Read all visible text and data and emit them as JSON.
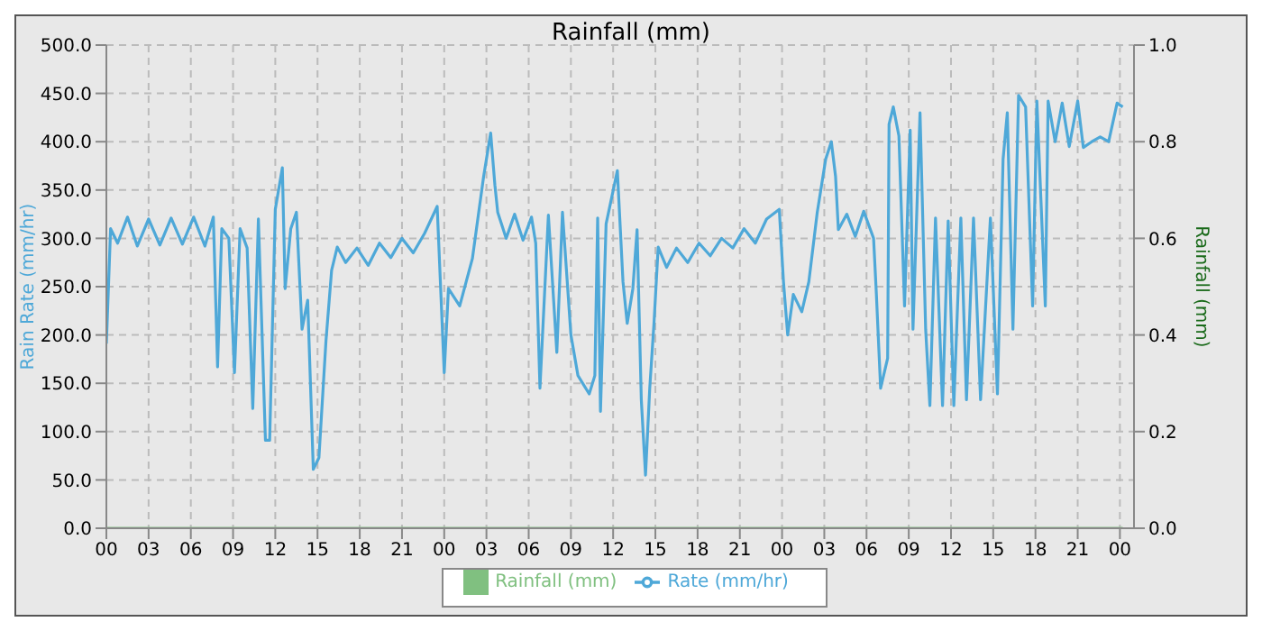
{
  "chart_data": {
    "type": "line",
    "title": "Rainfall (mm)",
    "ylabel": "Rain Rate (mm/hr)",
    "y2label": "Rainfall (mm)",
    "xlim": [
      0,
      73
    ],
    "xticks": [
      {
        "value": 0,
        "label": "00"
      },
      {
        "value": 3,
        "label": "03"
      },
      {
        "value": 6,
        "label": "06"
      },
      {
        "value": 9,
        "label": "09"
      },
      {
        "value": 12,
        "label": "12"
      },
      {
        "value": 15,
        "label": "15"
      },
      {
        "value": 18,
        "label": "18"
      },
      {
        "value": 21,
        "label": "21"
      },
      {
        "value": 24,
        "label": "00"
      },
      {
        "value": 27,
        "label": "03"
      },
      {
        "value": 30,
        "label": "06"
      },
      {
        "value": 33,
        "label": "09"
      },
      {
        "value": 36,
        "label": "12"
      },
      {
        "value": 39,
        "label": "15"
      },
      {
        "value": 42,
        "label": "18"
      },
      {
        "value": 45,
        "label": "21"
      },
      {
        "value": 48,
        "label": "00"
      },
      {
        "value": 51,
        "label": "03"
      },
      {
        "value": 54,
        "label": "06"
      },
      {
        "value": 57,
        "label": "09"
      },
      {
        "value": 60,
        "label": "12"
      },
      {
        "value": 63,
        "label": "15"
      },
      {
        "value": 66,
        "label": "18"
      },
      {
        "value": 69,
        "label": "21"
      },
      {
        "value": 72,
        "label": "00"
      }
    ],
    "ylim": [
      0,
      500
    ],
    "yticks": [
      {
        "value": 0,
        "label": "0.0"
      },
      {
        "value": 50,
        "label": "50.0"
      },
      {
        "value": 100,
        "label": "100.0"
      },
      {
        "value": 150,
        "label": "150.0"
      },
      {
        "value": 200,
        "label": "200.0"
      },
      {
        "value": 250,
        "label": "250.0"
      },
      {
        "value": 300,
        "label": "300.0"
      },
      {
        "value": 350,
        "label": "350.0"
      },
      {
        "value": 400,
        "label": "400.0"
      },
      {
        "value": 450,
        "label": "450.0"
      },
      {
        "value": 500,
        "label": "500.0"
      }
    ],
    "y2lim": [
      0,
      1
    ],
    "y2ticks": [
      {
        "value": 0,
        "label": "0.0"
      },
      0.2,
      0.4,
      0.6,
      0.8,
      {
        "value": 1,
        "label": "1.0"
      }
    ],
    "grid": true,
    "legend": "bottom",
    "marker": "none",
    "line_style": "solid",
    "series": [
      {
        "name": "Rate (mm/hr)",
        "color": "#4ea8d8",
        "x": [
          0,
          0.3,
          0.8,
          1.5,
          2.2,
          3,
          3.8,
          4.6,
          5.4,
          6.2,
          7,
          7.6,
          7.9,
          8.2,
          8.7,
          9.1,
          9.5,
          10,
          10.4,
          10.8,
          11.3,
          11.6,
          12,
          12.5,
          12.7,
          13.1,
          13.5,
          13.9,
          14.3,
          14.7,
          15.1,
          15.6,
          16,
          16.4,
          17,
          17.8,
          18.6,
          19.4,
          20.2,
          21,
          21.8,
          22.6,
          23.5,
          24,
          24.3,
          25.1,
          26,
          26.8,
          27.3,
          27.6,
          27.8,
          28.4,
          29,
          29.6,
          30.2,
          30.5,
          30.8,
          31.4,
          32,
          32.4,
          33,
          33.5,
          34.3,
          34.7,
          34.9,
          35.1,
          35.5,
          36.3,
          36.7,
          37,
          37.4,
          37.7,
          38,
          38.3,
          38.6,
          38.9,
          39.2,
          39.8,
          40.5,
          41.3,
          42.1,
          42.9,
          43.7,
          44.5,
          45.3,
          46.1,
          46.9,
          47.8,
          48.1,
          48.4,
          48.8,
          49.4,
          49.9,
          50.5,
          51.1,
          51.5,
          51.8,
          52,
          52.6,
          53.2,
          53.8,
          54.5,
          54.7,
          55,
          55.5,
          55.6,
          55.9,
          56.3,
          56.7,
          57.1,
          57.3,
          57.8,
          58.2,
          58.5,
          58.9,
          59.4,
          59.8,
          60.2,
          60.7,
          61.1,
          61.6,
          62.1,
          62.8,
          63.3,
          63.7,
          64,
          64.4,
          64.8,
          65.3,
          65.8,
          66.1,
          66.7,
          66.9,
          67.4,
          67.9,
          68.4,
          69,
          69.4,
          70,
          70.6,
          71.2,
          71.8,
          72.2
        ],
        "values": [
          191,
          310,
          295,
          322,
          292,
          320,
          293,
          321,
          294,
          322,
          292,
          322,
          167,
          310,
          300,
          161,
          310,
          290,
          124,
          320,
          91,
          91,
          330,
          373,
          248,
          310,
          327,
          206,
          236,
          61,
          73,
          194,
          267,
          291,
          275,
          290,
          272,
          295,
          280,
          300,
          285,
          305,
          333,
          161,
          248,
          230,
          279,
          364,
          409,
          355,
          327,
          300,
          325,
          298,
          322,
          295,
          145,
          324,
          182,
          327,
          200,
          158,
          139,
          158,
          321,
          121,
          315,
          370,
          255,
          212,
          248,
          309,
          133,
          55,
          145,
          212,
          291,
          270,
          290,
          275,
          295,
          282,
          300,
          290,
          310,
          295,
          320,
          330,
          255,
          200,
          242,
          224,
          255,
          327,
          382,
          400,
          364,
          309,
          325,
          302,
          328,
          300,
          242,
          145,
          176,
          418,
          436,
          406,
          230,
          412,
          206,
          430,
          206,
          127,
          321,
          127,
          318,
          127,
          321,
          133,
          321,
          133,
          321,
          139,
          382,
          430,
          206,
          448,
          436,
          230,
          442,
          230,
          442,
          400,
          440,
          395,
          442,
          394,
          400,
          405,
          400,
          440,
          436
        ]
      },
      {
        "name": "Rainfall (mm)",
        "color": "#80c080",
        "x": [
          0,
          72.2
        ],
        "values": [
          0,
          0
        ]
      }
    ]
  }
}
